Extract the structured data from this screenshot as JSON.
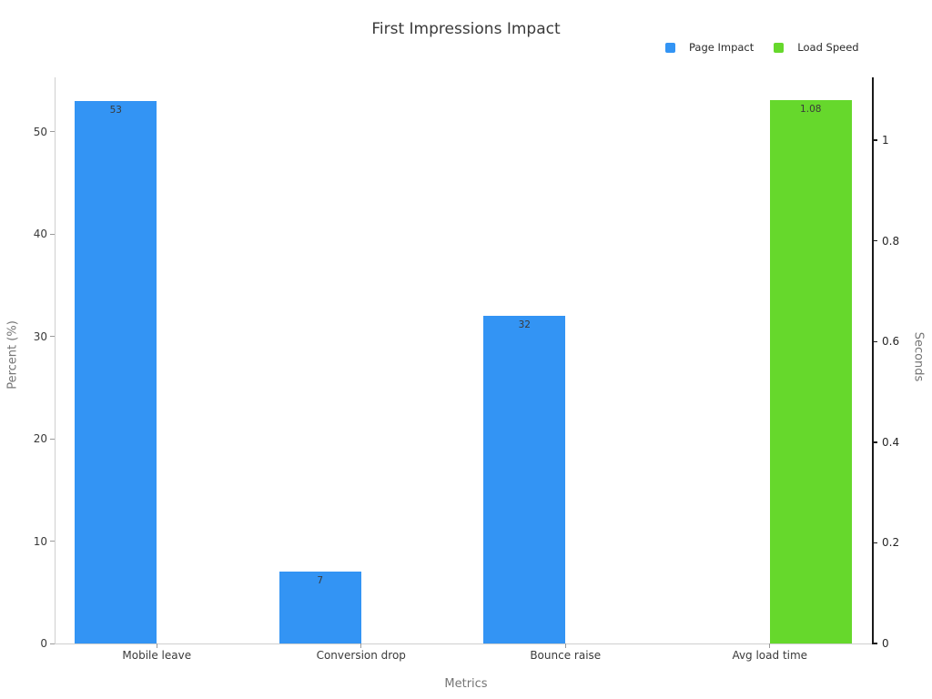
{
  "title": "First Impressions Impact",
  "chart_data": {
    "type": "bar",
    "title": "First Impressions Impact",
    "xlabel": "Metrics",
    "ylabel_left": "Percent (%)",
    "ylabel_right": "Seconds",
    "categories": [
      "Mobile leave",
      "Conversion drop",
      "Bounce raise",
      "Avg load time"
    ],
    "series": [
      {
        "name": "Page Impact",
        "axis": "left",
        "color": "#3394f4",
        "values": [
          53,
          7,
          32,
          null
        ],
        "value_labels": [
          "53",
          "7",
          "32",
          null
        ]
      },
      {
        "name": "Load Speed",
        "axis": "right",
        "color": "#66d82c",
        "values": [
          null,
          null,
          null,
          1.08
        ],
        "value_labels": [
          null,
          null,
          null,
          "1.08"
        ]
      }
    ],
    "yticks_left": [
      0,
      10,
      20,
      30,
      40,
      50
    ],
    "ytick_labels_left": [
      "0",
      "10",
      "20",
      "30",
      "40",
      "50"
    ],
    "yticks_right": [
      0,
      0.2,
      0.4,
      0.6,
      0.8,
      1
    ],
    "ytick_labels_right": [
      "0",
      "0.2",
      "0.4",
      "0.6",
      "0.8",
      "1"
    ],
    "ylim_left": [
      0,
      55.3
    ],
    "ylim_right": [
      0,
      1.125
    ],
    "legend_position": "top-right",
    "grid": false
  },
  "colors": {
    "page_impact": "#3394f4",
    "load_speed": "#66d82c"
  }
}
